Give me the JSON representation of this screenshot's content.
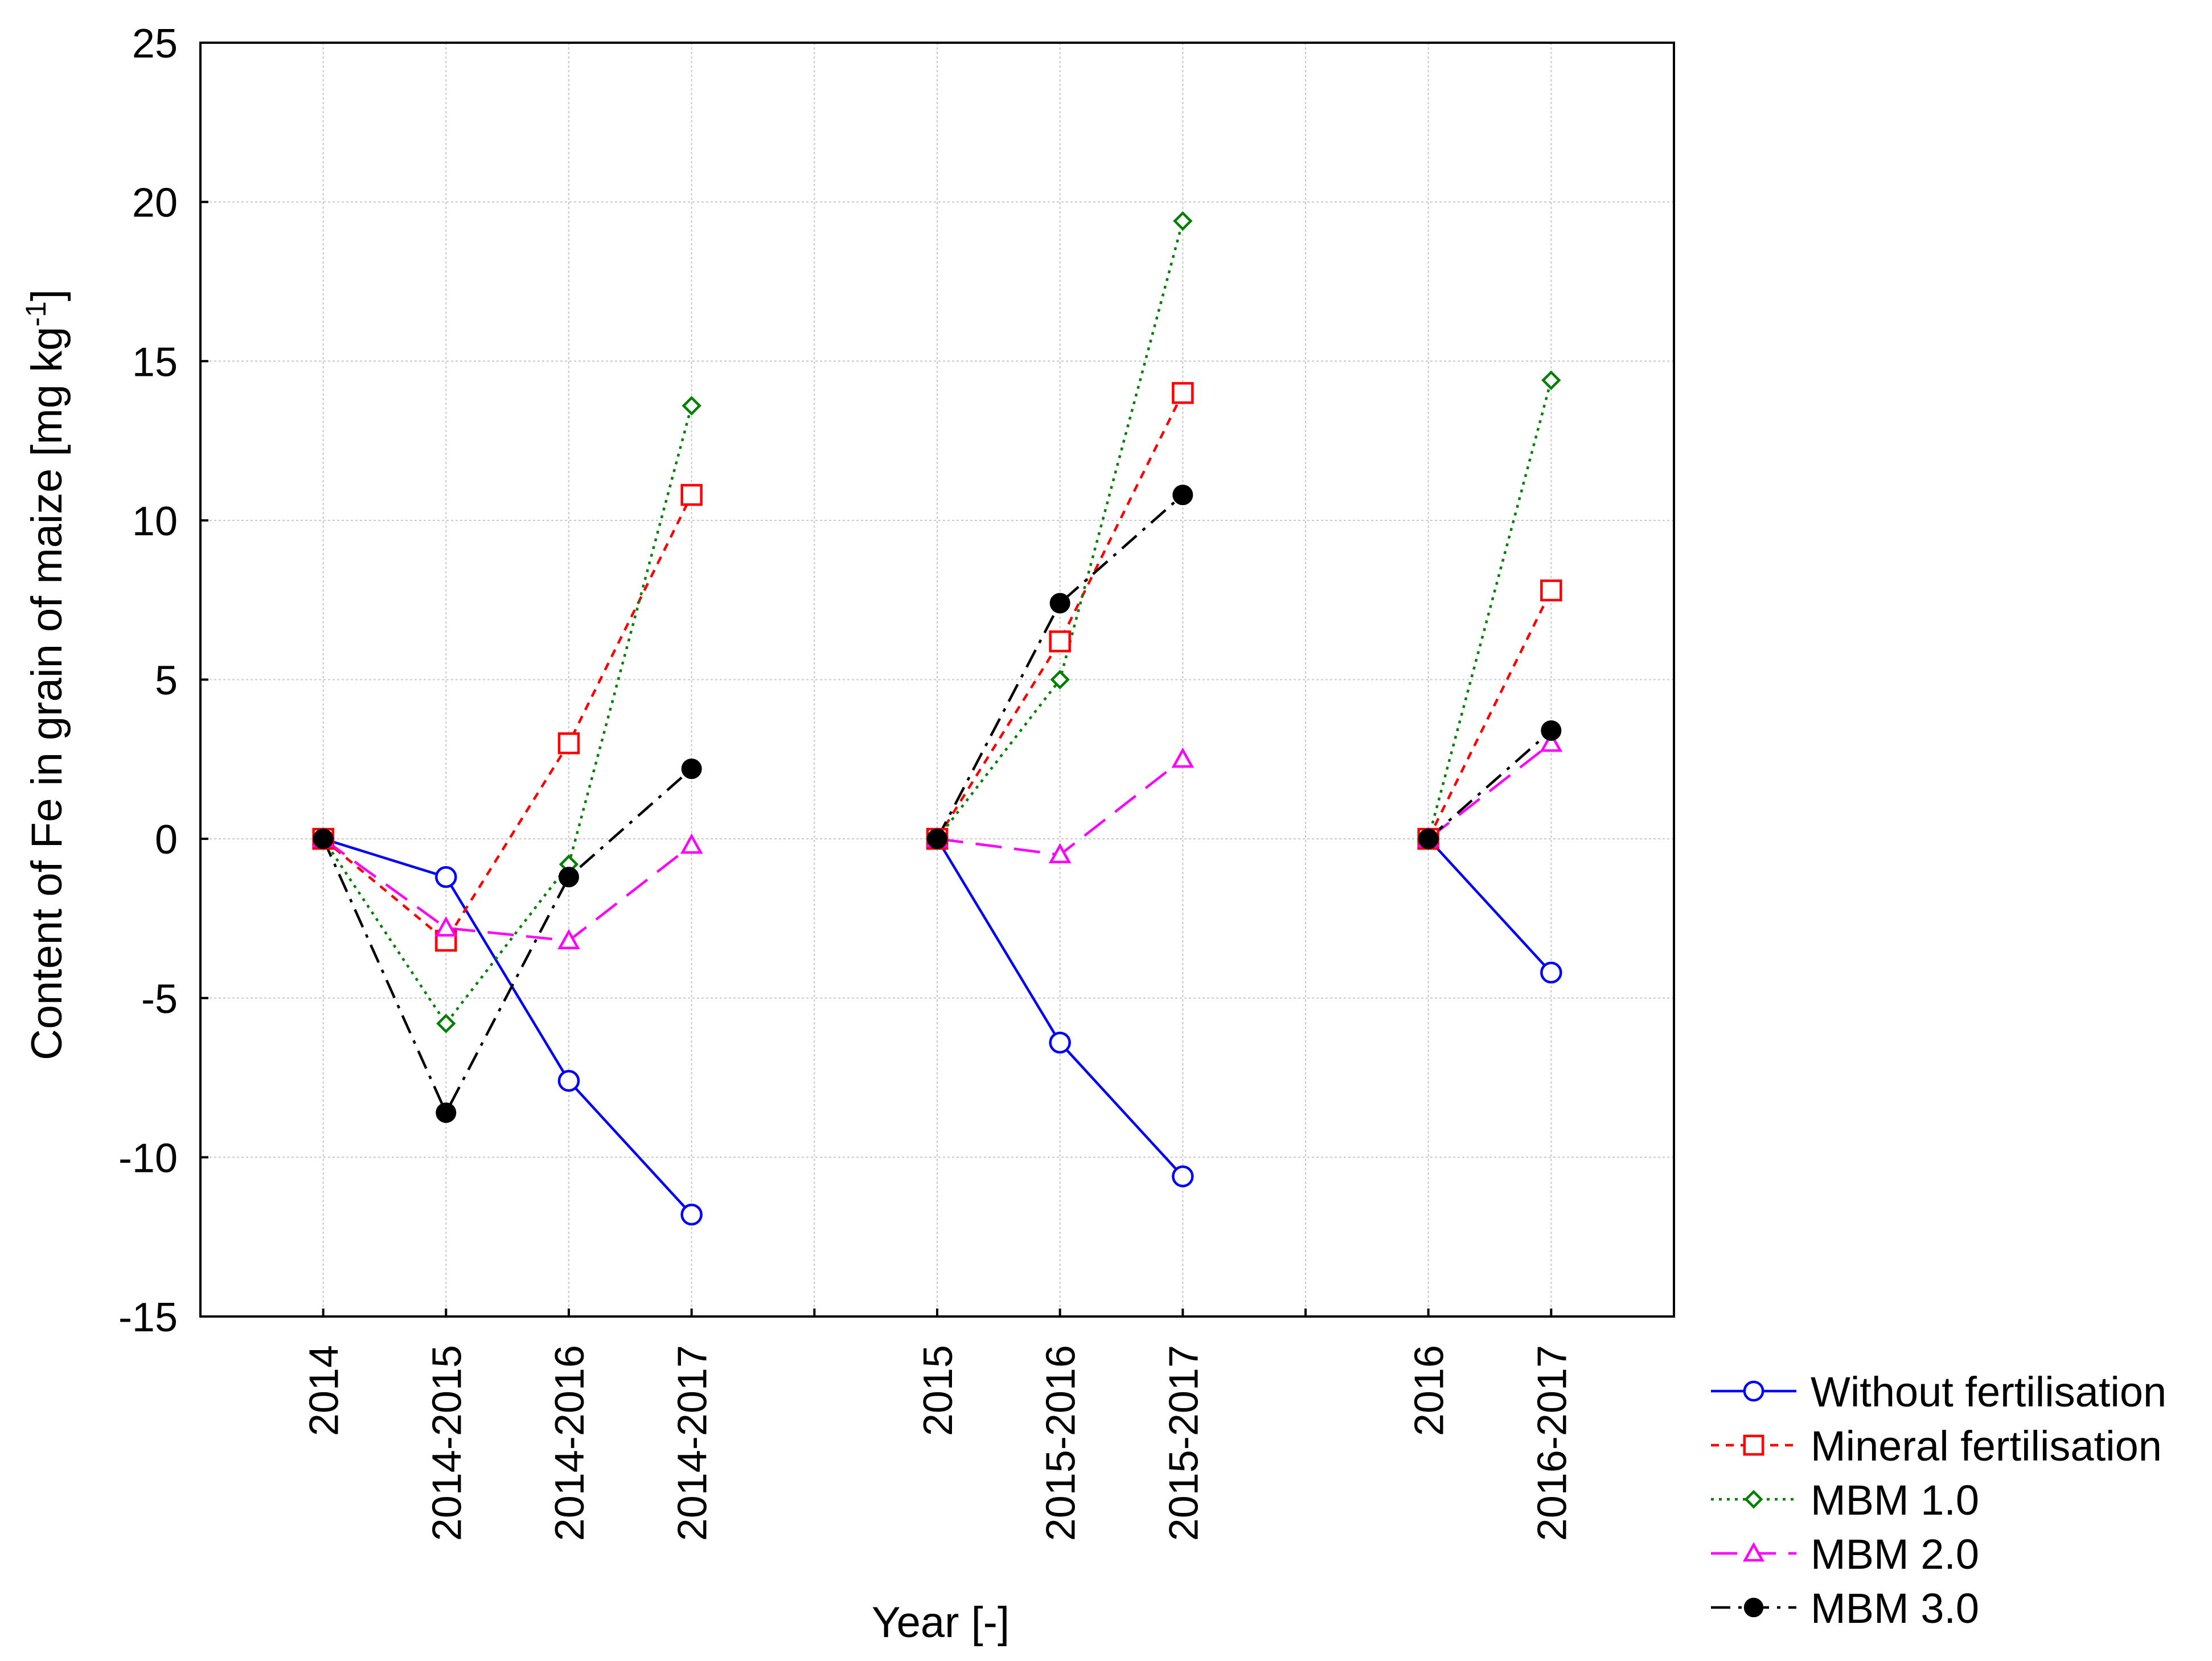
{
  "chart_data": {
    "type": "line",
    "title": "",
    "xlabel": "Year [-]",
    "ylabel": "Content of Fe in grain of maize [mg kg",
    "ylabel_sup": "-1",
    "ylabel_end": "]",
    "ylim": [
      -15,
      25
    ],
    "yticks": [
      -15,
      -10,
      -5,
      0,
      5,
      10,
      15,
      20,
      25
    ],
    "ytick_labels": [
      "-15",
      "-10",
      "-5",
      "0",
      "5",
      "10",
      "15",
      "20",
      "25"
    ],
    "grid": true,
    "legend_position": "bottom-right outside",
    "categories": [
      "2014",
      "2014-2015",
      "2014-2016",
      "2014-2017",
      "",
      "2015",
      "2015-2016",
      "2015-2017",
      "",
      "2016",
      "2016-2017",
      ""
    ],
    "groups": [
      [
        0,
        1,
        2,
        3
      ],
      [
        5,
        6,
        7
      ],
      [
        9,
        10
      ]
    ],
    "series": [
      {
        "name": "Without fertilisation",
        "color": "#0000ff",
        "marker": "circle-open",
        "dash": "solid",
        "values": [
          0,
          -1.2,
          -7.6,
          -11.8,
          null,
          0,
          -6.4,
          -10.6,
          null,
          0,
          -4.2,
          null
        ]
      },
      {
        "name": "Mineral fertilisation",
        "color": "#ff0000",
        "marker": "square-open",
        "dash": "dashed",
        "values": [
          0,
          -3.2,
          3.0,
          10.8,
          null,
          0,
          6.2,
          14.0,
          null,
          0,
          7.8,
          null
        ]
      },
      {
        "name": "MBM 1.0",
        "color": "#008000",
        "marker": "diamond-open",
        "dash": "dotted",
        "values": [
          0,
          -5.8,
          -0.8,
          13.6,
          null,
          0,
          5.0,
          19.4,
          null,
          0,
          14.4,
          null
        ]
      },
      {
        "name": "MBM 2.0",
        "color": "#ff00ff",
        "marker": "triangle-open",
        "dash": "long-dashed",
        "values": [
          0,
          -2.8,
          -3.2,
          -0.2,
          null,
          0,
          -0.5,
          2.5,
          null,
          0,
          3.0,
          null
        ]
      },
      {
        "name": "MBM 3.0",
        "color": "#000000",
        "marker": "circle-filled",
        "dash": "dash-dot",
        "values": [
          0,
          -8.6,
          -1.2,
          2.2,
          null,
          0,
          7.4,
          10.8,
          null,
          0,
          3.4,
          null
        ]
      }
    ]
  }
}
